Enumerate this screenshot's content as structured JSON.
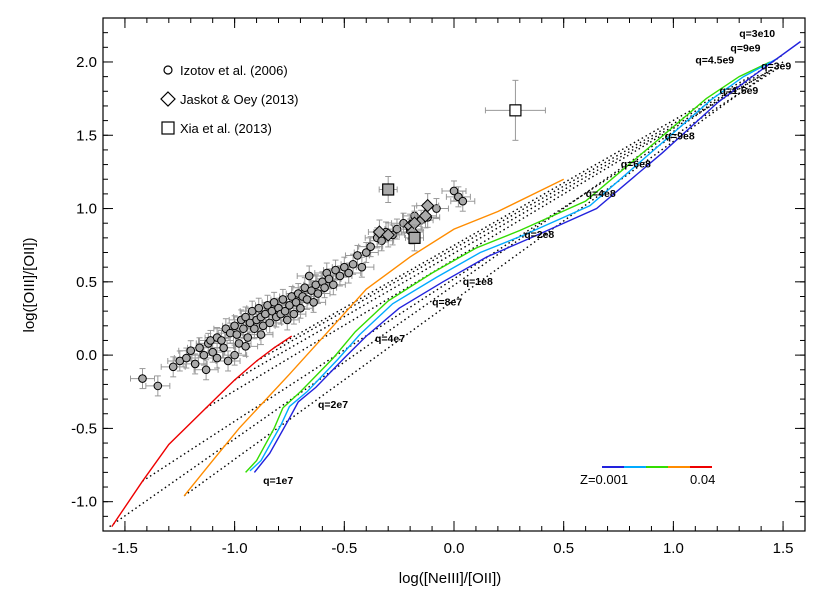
{
  "chart_data": {
    "type": "scatter",
    "xlabel": "log([NeIII]/[OII])",
    "ylabel": "log([OIII]/[OII])",
    "xlim": [
      -1.6,
      1.6
    ],
    "ylim": [
      -1.2,
      2.3
    ],
    "xticks": [
      "-1.5",
      "-1.0",
      "-0.5",
      "0.0",
      "0.5",
      "1.0",
      "1.5"
    ],
    "xtick_values": [
      -1.5,
      -1.0,
      -0.5,
      0.0,
      0.5,
      1.0,
      1.5
    ],
    "yticks": [
      "-1.0",
      "-0.5",
      "0.0",
      "0.5",
      "1.0",
      "1.5",
      "2.0"
    ],
    "ytick_values": [
      -1.0,
      -0.5,
      0.0,
      0.5,
      1.0,
      1.5,
      2.0
    ],
    "legend": [
      {
        "label": "Izotov et al. (2006)",
        "marker": "circle"
      },
      {
        "label": "Jaskot & Oey (2013)",
        "marker": "diamond"
      },
      {
        "label": "Xia et al. (2013)",
        "marker": "square"
      }
    ],
    "observations": {
      "izotov": [
        [
          -1.42,
          -0.16
        ],
        [
          -1.35,
          -0.21
        ],
        [
          -1.28,
          -0.08
        ],
        [
          -1.25,
          -0.04
        ],
        [
          -1.22,
          -0.02
        ],
        [
          -1.2,
          0.03
        ],
        [
          -1.18,
          -0.06
        ],
        [
          -1.16,
          0.05
        ],
        [
          -1.14,
          0.0
        ],
        [
          -1.13,
          -0.1
        ],
        [
          -1.12,
          0.08
        ],
        [
          -1.11,
          0.1
        ],
        [
          -1.1,
          0.02
        ],
        [
          -1.08,
          0.12
        ],
        [
          -1.06,
          0.1
        ],
        [
          -1.05,
          0.05
        ],
        [
          -1.04,
          0.18
        ],
        [
          -1.03,
          -0.04
        ],
        [
          -1.02,
          0.15
        ],
        [
          -1.0,
          0.2
        ],
        [
          -0.99,
          0.14
        ],
        [
          -0.98,
          0.08
        ],
        [
          -0.97,
          0.24
        ],
        [
          -0.96,
          0.18
        ],
        [
          -0.95,
          0.26
        ],
        [
          -0.94,
          0.12
        ],
        [
          -0.93,
          0.22
        ],
        [
          -0.92,
          0.3
        ],
        [
          -0.91,
          0.18
        ],
        [
          -0.9,
          0.24
        ],
        [
          -0.89,
          0.32
        ],
        [
          -0.88,
          0.26
        ],
        [
          -0.87,
          0.2
        ],
        [
          -0.86,
          0.28
        ],
        [
          -0.85,
          0.34
        ],
        [
          -0.84,
          0.22
        ],
        [
          -0.83,
          0.3
        ],
        [
          -0.82,
          0.36
        ],
        [
          -0.81,
          0.26
        ],
        [
          -0.8,
          0.32
        ],
        [
          -0.79,
          0.28
        ],
        [
          -0.78,
          0.38
        ],
        [
          -0.77,
          0.3
        ],
        [
          -0.76,
          0.24
        ],
        [
          -0.75,
          0.34
        ],
        [
          -0.74,
          0.4
        ],
        [
          -0.73,
          0.28
        ],
        [
          -0.72,
          0.36
        ],
        [
          -0.71,
          0.42
        ],
        [
          -0.7,
          0.32
        ],
        [
          -0.69,
          0.4
        ],
        [
          -0.68,
          0.46
        ],
        [
          -0.67,
          0.38
        ],
        [
          -0.66,
          0.54
        ],
        [
          -0.65,
          0.44
        ],
        [
          -0.64,
          0.36
        ],
        [
          -0.63,
          0.48
        ],
        [
          -0.62,
          0.42
        ],
        [
          -0.6,
          0.5
        ],
        [
          -0.59,
          0.46
        ],
        [
          -0.58,
          0.56
        ],
        [
          -0.57,
          0.52
        ],
        [
          -0.55,
          0.48
        ],
        [
          -0.54,
          0.58
        ],
        [
          -0.52,
          0.54
        ],
        [
          -0.5,
          0.6
        ],
        [
          -0.48,
          0.56
        ],
        [
          -0.46,
          0.62
        ],
        [
          -0.44,
          0.68
        ],
        [
          -0.42,
          0.6
        ],
        [
          -0.4,
          0.7
        ],
        [
          -0.38,
          0.74
        ],
        [
          -0.35,
          0.8
        ],
        [
          -0.33,
          0.78
        ],
        [
          -0.31,
          0.84
        ],
        [
          -0.28,
          0.82
        ],
        [
          -0.26,
          0.86
        ],
        [
          -0.23,
          0.9
        ],
        [
          -0.2,
          0.86
        ],
        [
          -0.18,
          0.95
        ],
        [
          -0.15,
          0.92
        ],
        [
          -0.12,
          0.94
        ],
        [
          -0.08,
          1.0
        ],
        [
          0.0,
          1.12
        ],
        [
          0.02,
          1.08
        ],
        [
          0.04,
          1.05
        ],
        [
          -1.08,
          -0.02
        ],
        [
          -1.0,
          0.0
        ],
        [
          -0.95,
          0.06
        ],
        [
          -0.88,
          0.14
        ]
      ],
      "jaskot": [
        [
          -0.34,
          0.84
        ],
        [
          -0.3,
          0.82
        ],
        [
          -0.2,
          0.88
        ],
        [
          -0.19,
          0.84
        ],
        [
          -0.13,
          0.95
        ],
        [
          -0.12,
          1.02
        ],
        [
          -0.18,
          0.9
        ]
      ],
      "xia": [
        [
          -0.3,
          1.13
        ],
        [
          -0.18,
          0.8
        ],
        [
          0.28,
          1.67
        ]
      ]
    },
    "model_series": [
      {
        "color": "#ee0000",
        "points": [
          [
            -1.56,
            -1.17
          ],
          [
            -1.42,
            -0.86
          ],
          [
            -1.3,
            -0.61
          ],
          [
            -1.13,
            -0.36
          ],
          [
            -1.0,
            -0.17
          ],
          [
            -0.9,
            -0.04
          ],
          [
            -0.82,
            0.05
          ],
          [
            -0.74,
            0.13
          ]
        ]
      },
      {
        "color": "#ff8c00",
        "points": [
          [
            -1.23,
            -0.96
          ],
          [
            -1.1,
            -0.72
          ],
          [
            -0.98,
            -0.5
          ],
          [
            -0.75,
            -0.13
          ],
          [
            -0.55,
            0.2
          ],
          [
            -0.4,
            0.45
          ],
          [
            -0.2,
            0.67
          ],
          [
            0.0,
            0.86
          ],
          [
            0.2,
            0.98
          ],
          [
            0.5,
            1.2
          ]
        ]
      },
      {
        "color": "#33dd00",
        "points": [
          [
            -0.95,
            -0.8
          ],
          [
            -0.9,
            -0.72
          ],
          [
            -0.82,
            -0.5
          ],
          [
            -0.78,
            -0.36
          ],
          [
            -0.7,
            -0.25
          ],
          [
            -0.55,
            -0.02
          ],
          [
            -0.45,
            0.16
          ],
          [
            -0.3,
            0.37
          ],
          [
            -0.1,
            0.56
          ],
          [
            0.1,
            0.73
          ],
          [
            0.3,
            0.85
          ],
          [
            0.6,
            1.05
          ],
          [
            0.9,
            1.43
          ],
          [
            1.15,
            1.75
          ],
          [
            1.3,
            1.9
          ],
          [
            1.44,
            2.0
          ]
        ]
      },
      {
        "color": "#00aaff",
        "points": [
          [
            -0.93,
            -0.79
          ],
          [
            -0.88,
            -0.72
          ],
          [
            -0.79,
            -0.48
          ],
          [
            -0.75,
            -0.35
          ],
          [
            -0.67,
            -0.25
          ],
          [
            -0.53,
            -0.03
          ],
          [
            -0.43,
            0.14
          ],
          [
            -0.28,
            0.35
          ],
          [
            -0.08,
            0.53
          ],
          [
            0.12,
            0.7
          ],
          [
            0.32,
            0.82
          ],
          [
            0.62,
            1.02
          ],
          [
            0.92,
            1.41
          ],
          [
            1.17,
            1.74
          ],
          [
            1.32,
            1.9
          ],
          [
            1.47,
            2.02
          ]
        ]
      },
      {
        "color": "#2222dd",
        "points": [
          [
            -0.91,
            -0.8
          ],
          [
            -0.84,
            -0.67
          ],
          [
            -0.75,
            -0.43
          ],
          [
            -0.71,
            -0.32
          ],
          [
            -0.63,
            -0.22
          ],
          [
            -0.5,
            -0.02
          ],
          [
            -0.4,
            0.13
          ],
          [
            -0.25,
            0.32
          ],
          [
            -0.05,
            0.5
          ],
          [
            0.15,
            0.67
          ],
          [
            0.35,
            0.8
          ],
          [
            0.65,
            1.0
          ],
          [
            0.95,
            1.38
          ],
          [
            1.2,
            1.72
          ],
          [
            1.35,
            1.89
          ],
          [
            1.58,
            2.14
          ]
        ]
      }
    ],
    "dotted_lines": [
      [
        [
          -1.57,
          -1.17
        ],
        [
          1.5,
          2.05
        ]
      ],
      [
        [
          -1.23,
          -0.96
        ],
        [
          1.5,
          2.0
        ]
      ],
      [
        [
          -1.42,
          -0.86
        ],
        [
          1.5,
          1.98
        ]
      ],
      [
        [
          -1.13,
          -0.36
        ],
        [
          1.45,
          1.95
        ]
      ],
      [
        [
          -1.0,
          -0.17
        ],
        [
          1.45,
          1.95
        ]
      ],
      [
        [
          -0.9,
          -0.04
        ],
        [
          1.4,
          1.92
        ]
      ],
      [
        [
          -0.82,
          0.05
        ],
        [
          1.35,
          1.9
        ]
      ]
    ],
    "q_labels": [
      {
        "text": "q=3e10",
        "x": 1.3,
        "y": 2.17
      },
      {
        "text": "q=9e9",
        "x": 1.26,
        "y": 2.07
      },
      {
        "text": "q=4.5e9",
        "x": 1.1,
        "y": 1.99
      },
      {
        "text": "q=3e9",
        "x": 1.4,
        "y": 1.95
      },
      {
        "text": "q=1.5e9",
        "x": 1.21,
        "y": 1.78
      },
      {
        "text": "q=9e8",
        "x": 0.96,
        "y": 1.47
      },
      {
        "text": "q=6e8",
        "x": 0.76,
        "y": 1.28
      },
      {
        "text": "q=4e8",
        "x": 0.6,
        "y": 1.08
      },
      {
        "text": "q=2e8",
        "x": 0.32,
        "y": 0.8
      },
      {
        "text": "q=1e8",
        "x": 0.04,
        "y": 0.48
      },
      {
        "text": "q=8e7",
        "x": -0.1,
        "y": 0.34
      },
      {
        "text": "q=4e7",
        "x": -0.36,
        "y": 0.09
      },
      {
        "text": "q=2e7",
        "x": -0.62,
        "y": -0.36
      },
      {
        "text": "q=1e7",
        "x": -0.87,
        "y": -0.88
      }
    ],
    "colorbar": {
      "labels": [
        "Z=0.001",
        "0.04"
      ],
      "colors": [
        "#2222dd",
        "#00aaff",
        "#33dd00",
        "#ff8c00",
        "#ee0000"
      ]
    }
  }
}
